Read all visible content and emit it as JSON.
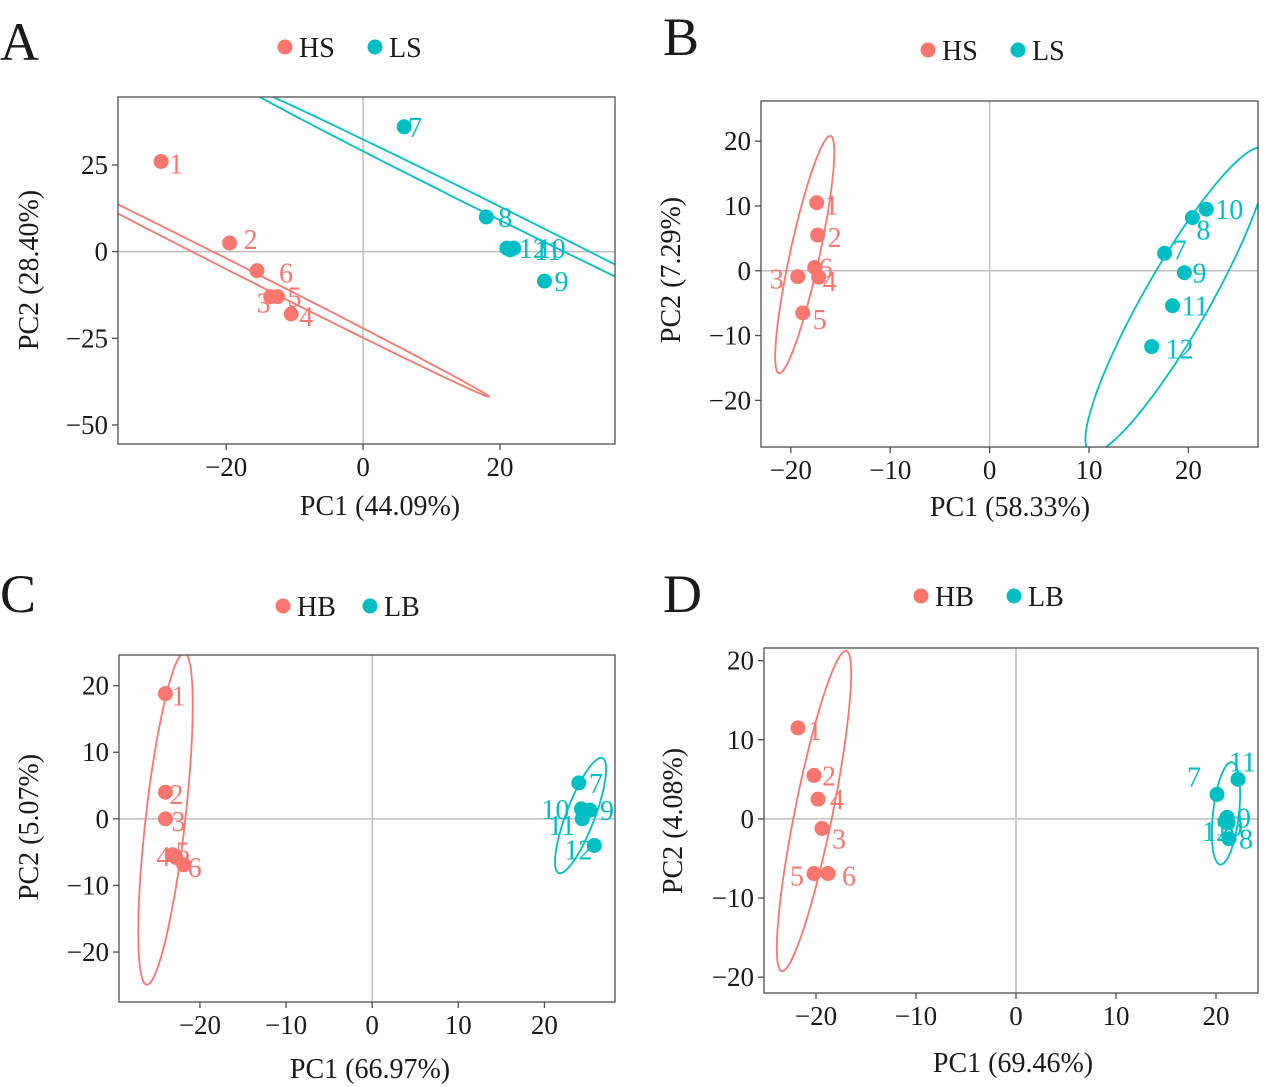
{
  "figure": {
    "type": "multi-panel PCA score plot",
    "background": "#ffffff"
  },
  "colors": {
    "group1": "#F8766D",
    "group2": "#00BFC4",
    "axis": "#4d4d4d",
    "refline": "#bfbfbf",
    "text": "#1a1a1a"
  },
  "chart_data": [
    {
      "panel": "A",
      "type": "scatter",
      "xlabel": "PC1 (44.09%)",
      "ylabel": "PC2 (28.40%)",
      "xlim": [
        -35.8,
        36.8
      ],
      "ylim": [
        -55.5,
        44.6
      ],
      "xticks": [
        -20,
        0,
        20
      ],
      "yticks": [
        25,
        0,
        -25,
        -50
      ],
      "legend": {
        "position": "top",
        "labels": [
          "HS",
          "LS"
        ]
      },
      "series": [
        {
          "name": "HS",
          "color": "#F8766D",
          "points": [
            {
              "label": "1",
              "x": -29.5,
              "y": 26
            },
            {
              "label": "2",
              "x": -19.5,
              "y": 2.5
            },
            {
              "label": "6",
              "x": -15.5,
              "y": -5.5
            },
            {
              "label": "3",
              "x": -13.5,
              "y": -13
            },
            {
              "label": "5",
              "x": -12.5,
              "y": -13
            },
            {
              "label": "4",
              "x": -10.5,
              "y": -18
            }
          ],
          "ellipse": {
            "cx": -17,
            "cy": -6.5,
            "a": 50,
            "b": 1.1,
            "angle_deg": -45
          }
        },
        {
          "name": "LS",
          "color": "#00BFC4",
          "points": [
            {
              "label": "7",
              "x": 6,
              "y": 36
            },
            {
              "label": "8",
              "x": 18,
              "y": 10
            },
            {
              "label": "12",
              "x": 21,
              "y": 1
            },
            {
              "label": "10",
              "x": 22,
              "y": 1
            },
            {
              "label": "11",
              "x": 21.5,
              "y": 0.5
            },
            {
              "label": "9",
              "x": 26.5,
              "y": -8.5
            }
          ],
          "ellipse": {
            "cx": 18.5,
            "cy": 12.5,
            "a": 52.5,
            "b": 1.4,
            "angle_deg": -44.5
          }
        }
      ]
    },
    {
      "panel": "B",
      "type": "scatter",
      "xlabel": "PC1 (58.33%)",
      "ylabel": "PC2 (7.29%)",
      "xlim": [
        -23,
        27
      ],
      "ylim": [
        -27.2,
        26.2
      ],
      "xticks": [
        -20,
        -10,
        0,
        10,
        20
      ],
      "yticks": [
        20,
        10,
        0,
        -10,
        -20
      ],
      "legend": {
        "position": "top",
        "labels": [
          "HS",
          "LS"
        ]
      },
      "series": [
        {
          "name": "HS",
          "color": "#F8766D",
          "points": [
            {
              "label": "1",
              "x": -17.4,
              "y": 10.5
            },
            {
              "label": "2",
              "x": -17.3,
              "y": 5.5
            },
            {
              "label": "6",
              "x": -17.6,
              "y": 0.5
            },
            {
              "label": "4",
              "x": -17.2,
              "y": -1
            },
            {
              "label": "3",
              "x": -19.3,
              "y": -0.9
            },
            {
              "label": "5",
              "x": -18.8,
              "y": -6.5
            }
          ],
          "ellipse": {
            "cx": -18.6,
            "cy": 2.5,
            "a": 18.5,
            "b": 1.5,
            "angle_deg": 82
          }
        },
        {
          "name": "LS",
          "color": "#00BFC4",
          "points": [
            {
              "label": "10",
              "x": 21.8,
              "y": 9.5
            },
            {
              "label": "8",
              "x": 20.4,
              "y": 8.2
            },
            {
              "label": "7",
              "x": 17.6,
              "y": 2.7
            },
            {
              "label": "9",
              "x": 19.6,
              "y": -0.3
            },
            {
              "label": "11",
              "x": 18.4,
              "y": -5.4
            },
            {
              "label": "12",
              "x": 16.3,
              "y": -11.7
            }
          ],
          "ellipse": {
            "cx": 18.8,
            "cy": -4.5,
            "a": 25,
            "b": 3.5,
            "angle_deg": 70
          }
        }
      ]
    },
    {
      "panel": "C",
      "type": "scatter",
      "xlabel": "PC1 (66.97%)",
      "ylabel": "PC2 (5.07%)",
      "xlim": [
        -29.4,
        28.2
      ],
      "ylim": [
        -27.5,
        24.6
      ],
      "xticks": [
        -20,
        -10,
        0,
        10,
        20
      ],
      "yticks": [
        20,
        10,
        0,
        -10,
        -20
      ],
      "legend": {
        "position": "top",
        "labels": [
          "HB",
          "LB"
        ]
      },
      "series": [
        {
          "name": "HB",
          "color": "#F8766D",
          "points": [
            {
              "label": "1",
              "x": -24,
              "y": 18.8
            },
            {
              "label": "2",
              "x": -24,
              "y": 4
            },
            {
              "label": "3",
              "x": -24,
              "y": 0
            },
            {
              "label": "4",
              "x": -23.2,
              "y": -5.4
            },
            {
              "label": "5",
              "x": -22.8,
              "y": -5.8
            },
            {
              "label": "6",
              "x": -21.9,
              "y": -6.9
            }
          ],
          "ellipse": {
            "cx": -24,
            "cy": 0,
            "a": 25,
            "b": 2.3,
            "angle_deg": 85
          }
        },
        {
          "name": "LB",
          "color": "#00BFC4",
          "points": [
            {
              "label": "7",
              "x": 24,
              "y": 5.4
            },
            {
              "label": "10",
              "x": 24.3,
              "y": 1.5
            },
            {
              "label": "9",
              "x": 25.3,
              "y": 1.3
            },
            {
              "label": "11",
              "x": 24.4,
              "y": 0
            },
            {
              "label": "12",
              "x": 25.8,
              "y": -4
            }
          ],
          "ellipse": {
            "cx": 24.2,
            "cy": 0.5,
            "a": 9,
            "b": 1.7,
            "angle_deg": 74
          }
        }
      ]
    },
    {
      "panel": "D",
      "type": "scatter",
      "xlabel": "PC1 (69.46%)",
      "ylabel": "PC2 (4.08%)",
      "xlim": [
        -25.2,
        24.2
      ],
      "ylim": [
        -22,
        21.6
      ],
      "xticks": [
        -20,
        -10,
        0,
        10,
        20
      ],
      "yticks": [
        20,
        10,
        0,
        -10,
        -20
      ],
      "legend": {
        "position": "top",
        "labels": [
          "HB",
          "LB"
        ]
      },
      "series": [
        {
          "name": "HB",
          "color": "#F8766D",
          "points": [
            {
              "label": "1",
              "x": -21.8,
              "y": 11.5
            },
            {
              "label": "2",
              "x": -20.2,
              "y": 5.5
            },
            {
              "label": "4",
              "x": -19.8,
              "y": 2.5
            },
            {
              "label": "3",
              "x": -19.4,
              "y": -1.2
            },
            {
              "label": "5",
              "x": -20.2,
              "y": -6.9
            },
            {
              "label": "6",
              "x": -18.8,
              "y": -6.9
            }
          ],
          "ellipse": {
            "cx": -20.2,
            "cy": 1,
            "a": 20.5,
            "b": 1.9,
            "angle_deg": 81
          }
        },
        {
          "name": "LB",
          "color": "#00BFC4",
          "points": [
            {
              "label": "11",
              "x": 22.2,
              "y": 5
            },
            {
              "label": "7",
              "x": 20.1,
              "y": 3.1
            },
            {
              "label": "9",
              "x": 21.1,
              "y": 0.2
            },
            {
              "label": "12",
              "x": 21.2,
              "y": -0.5
            },
            {
              "label": "10",
              "x": 20.9,
              "y": -0.3
            },
            {
              "label": "8",
              "x": 21.3,
              "y": -2.5
            }
          ],
          "ellipse": {
            "cx": 21,
            "cy": 0.7,
            "a": 6.5,
            "b": 1.3,
            "angle_deg": 85
          }
        }
      ]
    }
  ]
}
